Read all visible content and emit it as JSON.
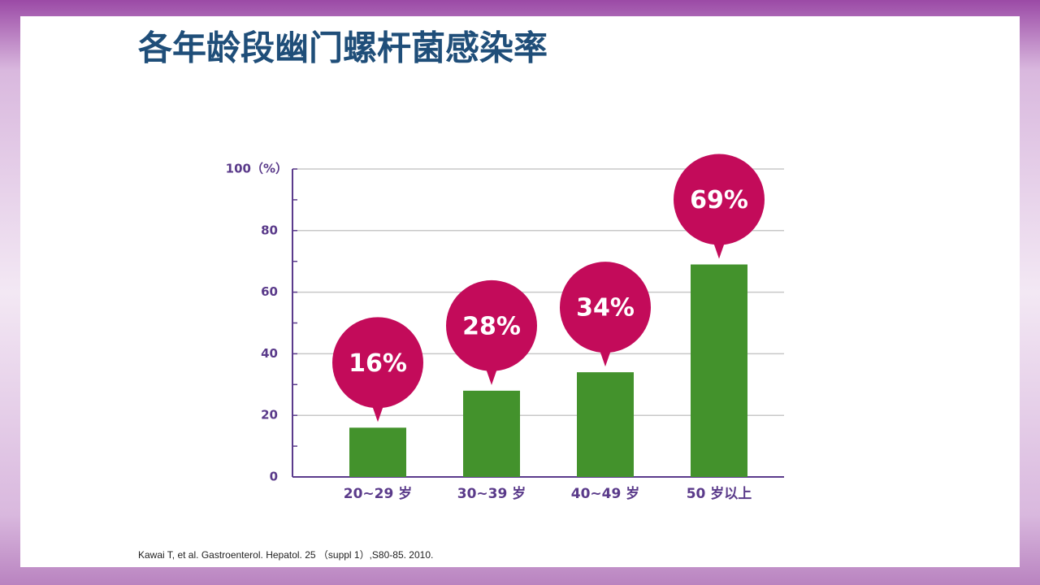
{
  "chart_data": {
    "type": "bar",
    "title": "各年龄段幽门螺杆菌感染率",
    "categories": [
      "20~29 岁",
      "30~39 岁",
      "40~49 岁",
      "50 岁以上"
    ],
    "values": [
      16,
      28,
      34,
      69
    ],
    "value_labels": [
      "16%",
      "28%",
      "34%",
      "69%"
    ],
    "color": "#43922c",
    "label_color": "#c30b5a",
    "ylim": [
      0,
      100
    ],
    "yticks": [
      0,
      20,
      40,
      60,
      80,
      {
        "value": 100,
        "label": "100（%）"
      }
    ],
    "minor_yticks": [
      10,
      30,
      50,
      70,
      90
    ],
    "grid": true,
    "source": "Kawai T, et al. Gastroenterol. Hepatol. 25 （suppl 1）,S80-85. 2010."
  }
}
